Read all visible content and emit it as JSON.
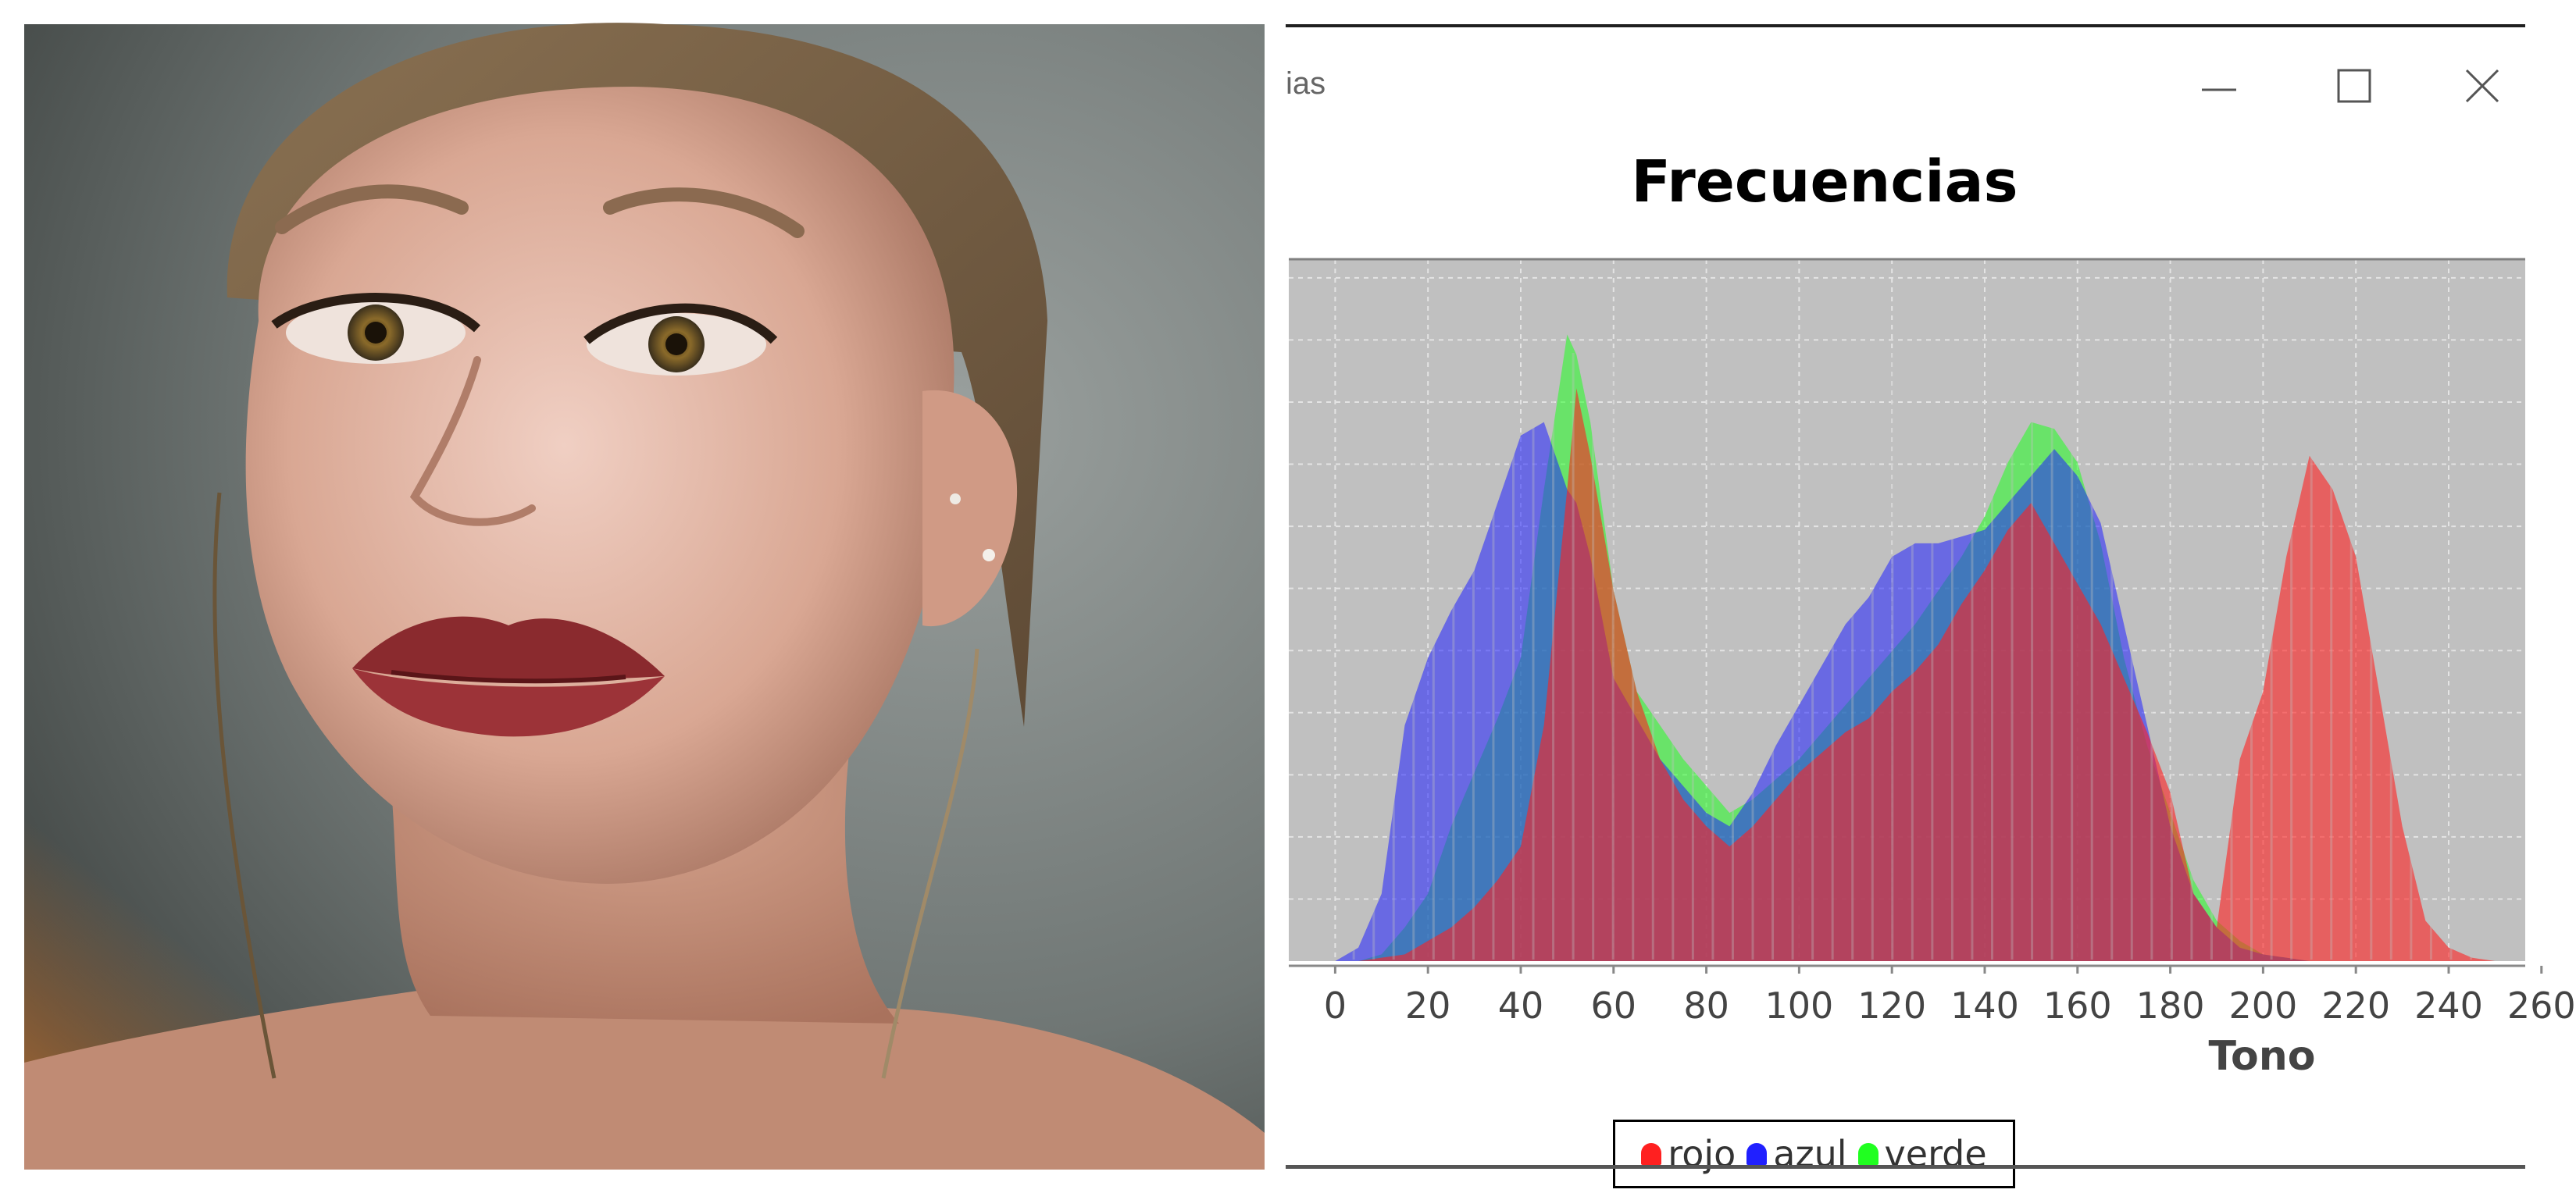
{
  "window": {
    "title": "ias",
    "controls": {
      "minimize": "minimize",
      "maximize": "maximize",
      "close": "close"
    }
  },
  "photo": {
    "icon": "portrait-photo"
  },
  "chart_data": {
    "type": "area",
    "title": "Frecuencias",
    "xlabel": "Tono",
    "ylabel": "",
    "xlim": [
      0,
      260
    ],
    "x_ticks": [
      0,
      20,
      40,
      60,
      80,
      100,
      120,
      140,
      160,
      180,
      200,
      220,
      240,
      260
    ],
    "x_tick_labels": [
      "0",
      "20",
      "40",
      "60",
      "80",
      "100",
      "120",
      "140",
      "160",
      "180",
      "200",
      "220",
      "240",
      "260"
    ],
    "ylim": [
      0,
      100
    ],
    "grid": true,
    "legend": "bottom",
    "plot_background": "#c0c0c0",
    "x": [
      0,
      5,
      10,
      15,
      20,
      25,
      30,
      35,
      40,
      45,
      50,
      52,
      55,
      60,
      65,
      70,
      75,
      80,
      85,
      90,
      95,
      100,
      105,
      110,
      115,
      120,
      125,
      130,
      135,
      140,
      145,
      150,
      155,
      160,
      165,
      170,
      175,
      180,
      185,
      190,
      195,
      200,
      205,
      210,
      215,
      220,
      225,
      230,
      235,
      240,
      245,
      250,
      255
    ],
    "series": [
      {
        "name": "rojo",
        "color": "#ff2020",
        "values": [
          0,
          0,
          0.5,
          1,
          3,
          5,
          8,
          12,
          17,
          35,
          70,
          85,
          75,
          55,
          40,
          30,
          24,
          20,
          17,
          20,
          24,
          28,
          31,
          34,
          36,
          40,
          43,
          47,
          53,
          58,
          64,
          68,
          62,
          56,
          50,
          42,
          34,
          25,
          10,
          5,
          30,
          40,
          60,
          75,
          70,
          60,
          40,
          20,
          6,
          2,
          0.5,
          0,
          0
        ]
      },
      {
        "name": "azul",
        "color": "#2020ff",
        "values": [
          0,
          2,
          10,
          35,
          45,
          52,
          58,
          68,
          78,
          80,
          70,
          68,
          60,
          42,
          36,
          30,
          26,
          22,
          20,
          25,
          32,
          38,
          44,
          50,
          54,
          60,
          62,
          62,
          63,
          64,
          68,
          72,
          76,
          72,
          65,
          50,
          35,
          20,
          10,
          5,
          2,
          1,
          0.5,
          0,
          0,
          0,
          0,
          0,
          0,
          0,
          0,
          0,
          0
        ]
      },
      {
        "name": "verde",
        "color": "#20ff20",
        "values": [
          0,
          0,
          1,
          5,
          10,
          20,
          28,
          36,
          45,
          70,
          93,
          90,
          80,
          55,
          40,
          35,
          30,
          26,
          22,
          24,
          27,
          30,
          34,
          38,
          42,
          46,
          50,
          55,
          60,
          66,
          74,
          80,
          79,
          74,
          62,
          45,
          32,
          22,
          12,
          6,
          3,
          1,
          0.5,
          0,
          0,
          0,
          0,
          0,
          0,
          0,
          0,
          0,
          0
        ]
      }
    ]
  }
}
